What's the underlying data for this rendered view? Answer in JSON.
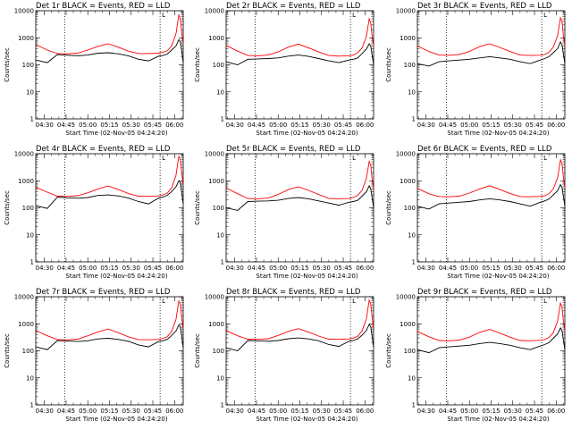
{
  "figure": {
    "xlabel": "Start Time (02-Nov-05 04:24:20)",
    "ylabel": "Counts/sec",
    "x_tick_labels": [
      "04:30",
      "04:45",
      "05:00",
      "05:15",
      "05:30",
      "05:45",
      "06:00"
    ],
    "y_tick_labels": [
      "1",
      "10",
      "100",
      "1000",
      "10000"
    ],
    "colors": {
      "events": "#000000",
      "lld": "#ff0000",
      "axes": "#000000",
      "background": "#ffffff"
    }
  },
  "chart_data": [
    {
      "type": "line",
      "title": "Det 1r BLACK = Events, RED = LLD",
      "xlabel": "Start Time (02-Nov-05 04:24:20)",
      "ylabel": "Counts/sec",
      "x_range_min": [
        264,
        366
      ],
      "y_range": [
        1,
        10000
      ],
      "y_scale": "log",
      "marker_flag": "L",
      "vlines_min": [
        284,
        350
      ],
      "x": [
        264,
        272,
        279,
        286,
        293,
        300,
        307,
        314,
        321,
        328,
        335,
        342,
        349,
        352,
        355,
        358,
        361,
        363,
        364,
        365,
        366
      ],
      "series": [
        {
          "name": "Events",
          "color": "#000000",
          "values": [
            150,
            120,
            240,
            225,
            215,
            230,
            270,
            280,
            255,
            215,
            160,
            140,
            210,
            220,
            250,
            350,
            500,
            850,
            700,
            300,
            120
          ]
        },
        {
          "name": "LLD",
          "color": "#ff0000",
          "values": [
            560,
            350,
            260,
            255,
            270,
            350,
            480,
            600,
            450,
            320,
            260,
            260,
            270,
            290,
            330,
            500,
            1400,
            7000,
            5000,
            1500,
            600
          ]
        }
      ]
    },
    {
      "type": "line",
      "title": "Det 2r BLACK = Events, RED = LLD",
      "xlabel": "Start Time (02-Nov-05 04:24:20)",
      "ylabel": "Counts/sec",
      "x_range_min": [
        264,
        366
      ],
      "y_range": [
        1,
        10000
      ],
      "y_scale": "log",
      "marker_flag": "L",
      "vlines_min": [
        284,
        350
      ],
      "x": [
        264,
        272,
        279,
        286,
        293,
        300,
        307,
        314,
        321,
        328,
        335,
        342,
        349,
        352,
        355,
        358,
        361,
        363,
        364,
        365,
        366
      ],
      "series": [
        {
          "name": "Events",
          "color": "#000000",
          "values": [
            130,
            100,
            160,
            165,
            170,
            180,
            210,
            230,
            205,
            170,
            140,
            120,
            150,
            160,
            180,
            260,
            380,
            600,
            500,
            220,
            100
          ]
        },
        {
          "name": "LLD",
          "color": "#ff0000",
          "values": [
            520,
            320,
            220,
            215,
            230,
            300,
            450,
            580,
            420,
            300,
            220,
            210,
            215,
            230,
            280,
            420,
            1100,
            5000,
            3500,
            1100,
            500
          ]
        }
      ]
    },
    {
      "type": "line",
      "title": "Det 3r BLACK = Events, RED = LLD",
      "xlabel": "Start Time (02-Nov-05 04:24:20)",
      "ylabel": "Counts/sec",
      "x_range_min": [
        264,
        366
      ],
      "y_range": [
        1,
        10000
      ],
      "y_scale": "log",
      "marker_flag": "L",
      "vlines_min": [
        284,
        350
      ],
      "x": [
        264,
        272,
        279,
        286,
        293,
        300,
        307,
        314,
        321,
        328,
        335,
        342,
        349,
        352,
        355,
        358,
        361,
        363,
        364,
        365,
        366
      ],
      "series": [
        {
          "name": "Events",
          "color": "#000000",
          "values": [
            110,
            90,
            130,
            140,
            150,
            160,
            180,
            200,
            180,
            160,
            130,
            110,
            150,
            170,
            200,
            280,
            400,
            700,
            550,
            250,
            110
          ]
        },
        {
          "name": "LLD",
          "color": "#ff0000",
          "values": [
            500,
            310,
            230,
            225,
            240,
            310,
            470,
            600,
            440,
            310,
            230,
            220,
            225,
            240,
            290,
            450,
            1200,
            5500,
            4000,
            1200,
            520
          ]
        }
      ]
    },
    {
      "type": "line",
      "title": "Det 4r BLACK = Events, RED = LLD",
      "xlabel": "Start Time (02-Nov-05 04:24:20)",
      "ylabel": "Counts/sec",
      "x_range_min": [
        264,
        366
      ],
      "y_range": [
        1,
        10000
      ],
      "y_scale": "log",
      "marker_flag": "L",
      "vlines_min": [
        284,
        350
      ],
      "x": [
        264,
        272,
        279,
        286,
        293,
        300,
        307,
        314,
        321,
        328,
        335,
        342,
        349,
        352,
        355,
        358,
        361,
        363,
        364,
        365,
        366
      ],
      "series": [
        {
          "name": "Events",
          "color": "#000000",
          "values": [
            120,
            95,
            250,
            235,
            225,
            240,
            285,
            300,
            275,
            230,
            170,
            140,
            230,
            250,
            290,
            400,
            600,
            1000,
            850,
            350,
            140
          ]
        },
        {
          "name": "LLD",
          "color": "#ff0000",
          "values": [
            580,
            380,
            270,
            265,
            280,
            360,
            500,
            640,
            480,
            340,
            270,
            265,
            275,
            300,
            350,
            550,
            1600,
            8000,
            6000,
            1800,
            700
          ]
        }
      ]
    },
    {
      "type": "line",
      "title": "Det 5r BLACK = Events, RED = LLD",
      "xlabel": "Start Time (02-Nov-05 04:24:20)",
      "ylabel": "Counts/sec",
      "x_range_min": [
        264,
        366
      ],
      "y_range": [
        1,
        10000
      ],
      "y_scale": "log",
      "marker_flag": "L",
      "vlines_min": [
        284,
        350
      ],
      "x": [
        264,
        272,
        279,
        286,
        293,
        300,
        307,
        314,
        321,
        328,
        335,
        342,
        349,
        352,
        355,
        358,
        361,
        363,
        364,
        365,
        366
      ],
      "series": [
        {
          "name": "Events",
          "color": "#000000",
          "values": [
            100,
            80,
            170,
            175,
            180,
            190,
            220,
            240,
            215,
            180,
            150,
            125,
            160,
            170,
            190,
            270,
            390,
            650,
            500,
            230,
            100
          ]
        },
        {
          "name": "LLD",
          "color": "#ff0000",
          "values": [
            540,
            330,
            220,
            215,
            230,
            310,
            470,
            600,
            440,
            310,
            220,
            215,
            220,
            240,
            290,
            440,
            1200,
            5200,
            3800,
            1150,
            500
          ]
        }
      ]
    },
    {
      "type": "line",
      "title": "Det 6r BLACK = Events, RED = LLD",
      "xlabel": "Start Time (02-Nov-05 04:24:20)",
      "ylabel": "Counts/sec",
      "x_range_min": [
        264,
        366
      ],
      "y_range": [
        1,
        10000
      ],
      "y_scale": "log",
      "marker_flag": "L",
      "vlines_min": [
        284,
        350
      ],
      "x": [
        264,
        272,
        279,
        286,
        293,
        300,
        307,
        314,
        321,
        328,
        335,
        342,
        349,
        352,
        355,
        358,
        361,
        363,
        364,
        365,
        366
      ],
      "series": [
        {
          "name": "Events",
          "color": "#000000",
          "values": [
            115,
            90,
            140,
            150,
            160,
            170,
            195,
            215,
            195,
            170,
            140,
            115,
            160,
            180,
            210,
            300,
            430,
            720,
            580,
            260,
            115
          ]
        },
        {
          "name": "LLD",
          "color": "#ff0000",
          "values": [
            520,
            330,
            260,
            255,
            270,
            350,
            500,
            650,
            480,
            340,
            260,
            255,
            265,
            280,
            330,
            500,
            1300,
            6000,
            4300,
            1300,
            560
          ]
        }
      ]
    },
    {
      "type": "line",
      "title": "Det 7r BLACK = Events, RED = LLD",
      "xlabel": "Start Time (02-Nov-05 04:24:20)",
      "ylabel": "Counts/sec",
      "x_range_min": [
        264,
        366
      ],
      "y_range": [
        1,
        10000
      ],
      "y_scale": "log",
      "marker_flag": "L",
      "vlines_min": [
        284,
        350
      ],
      "x": [
        264,
        272,
        279,
        286,
        293,
        300,
        307,
        314,
        321,
        328,
        335,
        342,
        349,
        352,
        355,
        358,
        361,
        363,
        364,
        365,
        366
      ],
      "series": [
        {
          "name": "Events",
          "color": "#000000",
          "values": [
            140,
            110,
            240,
            230,
            220,
            235,
            275,
            290,
            265,
            225,
            165,
            140,
            220,
            235,
            265,
            370,
            540,
            900,
            750,
            320,
            130
          ]
        },
        {
          "name": "LLD",
          "color": "#ff0000",
          "values": [
            560,
            360,
            260,
            255,
            270,
            360,
            500,
            640,
            470,
            330,
            260,
            255,
            265,
            285,
            335,
            520,
            1450,
            7000,
            5200,
            1600,
            650
          ]
        }
      ]
    },
    {
      "type": "line",
      "title": "Det 8r BLACK = Events, RED = LLD",
      "xlabel": "Start Time (02-Nov-05 04:24:20)",
      "ylabel": "Counts/sec",
      "x_range_min": [
        264,
        366
      ],
      "y_range": [
        1,
        10000
      ],
      "y_scale": "log",
      "marker_flag": "L",
      "vlines_min": [
        284,
        350
      ],
      "x": [
        264,
        272,
        279,
        286,
        293,
        300,
        307,
        314,
        321,
        328,
        335,
        342,
        349,
        352,
        355,
        358,
        361,
        363,
        364,
        365,
        366
      ],
      "series": [
        {
          "name": "Events",
          "color": "#000000",
          "values": [
            130,
            100,
            240,
            235,
            225,
            240,
            280,
            300,
            275,
            235,
            170,
            145,
            225,
            240,
            275,
            380,
            560,
            950,
            780,
            330,
            135
          ]
        },
        {
          "name": "LLD",
          "color": "#ff0000",
          "values": [
            560,
            360,
            270,
            265,
            280,
            370,
            520,
            660,
            490,
            350,
            270,
            265,
            275,
            295,
            345,
            540,
            1500,
            7500,
            5500,
            1700,
            680
          ]
        }
      ]
    },
    {
      "type": "line",
      "title": "Det 9r BLACK = Events, RED = LLD",
      "xlabel": "Start Time (02-Nov-05 04:24:20)",
      "ylabel": "Counts/sec",
      "x_range_min": [
        264,
        366
      ],
      "y_range": [
        1,
        10000
      ],
      "y_scale": "log",
      "marker_flag": "L",
      "vlines_min": [
        284,
        350
      ],
      "x": [
        264,
        272,
        279,
        286,
        293,
        300,
        307,
        314,
        321,
        328,
        335,
        342,
        349,
        352,
        355,
        358,
        361,
        363,
        364,
        365,
        366
      ],
      "series": [
        {
          "name": "Events",
          "color": "#000000",
          "values": [
            110,
            85,
            130,
            140,
            150,
            160,
            185,
            205,
            185,
            160,
            130,
            110,
            150,
            170,
            200,
            290,
            420,
            700,
            560,
            250,
            110
          ]
        },
        {
          "name": "LLD",
          "color": "#ff0000",
          "values": [
            520,
            330,
            240,
            235,
            250,
            320,
            480,
            620,
            450,
            320,
            240,
            235,
            245,
            260,
            310,
            470,
            1250,
            5800,
            4200,
            1250,
            540
          ]
        }
      ]
    }
  ]
}
